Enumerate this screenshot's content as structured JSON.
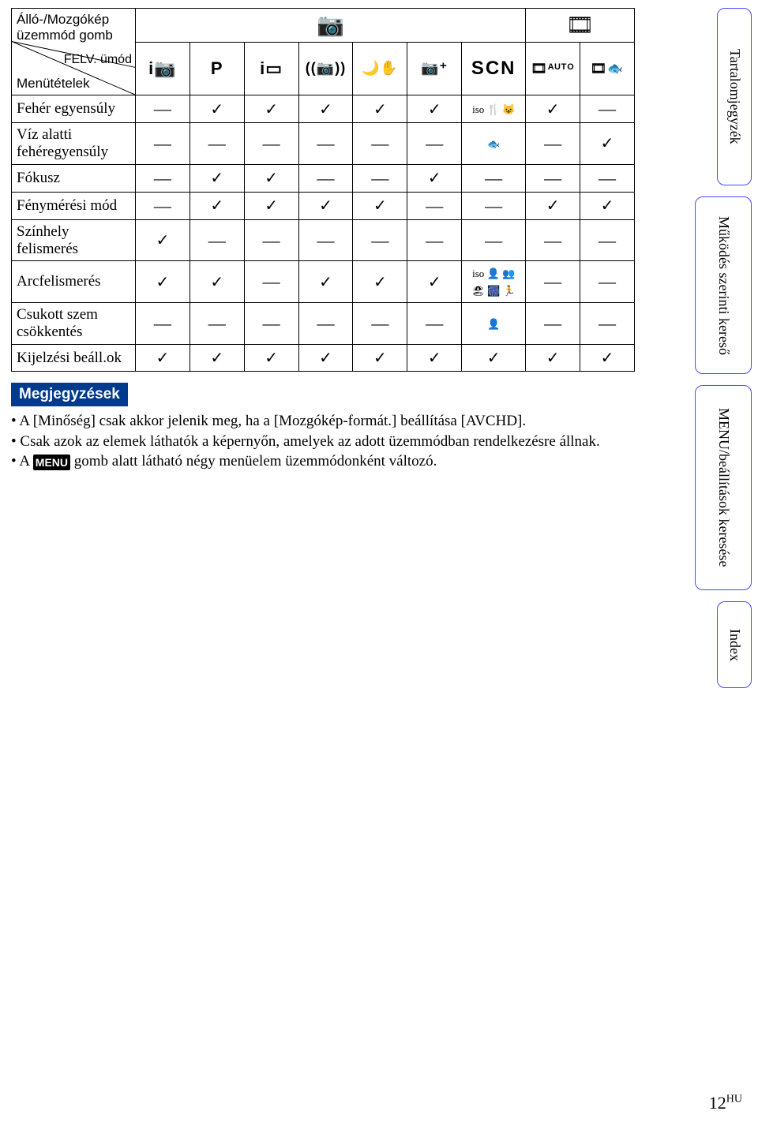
{
  "header": {
    "top_line1": "Álló-/Mozgókép",
    "top_line2": "üzemmód gomb",
    "mid": "FELV. ümód",
    "bottom": "Menütételek"
  },
  "col_headers_top": {
    "camera_icon": "📷",
    "film_icon": "🎞"
  },
  "col_headers_sub": {
    "c1": "i📷",
    "c2": "P",
    "c3": "i▭",
    "c4": "((📷))",
    "c5": "🌙✋",
    "c6": "📷⁺",
    "c7": "SCN",
    "c8": "🎞ᴬᵁᵀᴼ",
    "c9": "🎞🐟"
  },
  "rows": [
    {
      "label": "Fehér egyensúly",
      "cells": [
        "—",
        "✓",
        "✓",
        "✓",
        "✓",
        "✓",
        "iso 🍴 😺",
        "✓",
        "—"
      ]
    },
    {
      "label": "Víz alatti\nfehéregyensúly",
      "cells": [
        "—",
        "—",
        "—",
        "—",
        "—",
        "—",
        "🐟",
        "—",
        "✓"
      ]
    },
    {
      "label": "Fókusz",
      "cells": [
        "—",
        "✓",
        "✓",
        "—",
        "—",
        "✓",
        "—",
        "—",
        "—"
      ]
    },
    {
      "label": "Fénymérési mód",
      "cells": [
        "—",
        "✓",
        "✓",
        "✓",
        "✓",
        "—",
        "—",
        "✓",
        "✓"
      ]
    },
    {
      "label": "Színhely\nfelismerés",
      "cells": [
        "✓",
        "—",
        "—",
        "—",
        "—",
        "—",
        "—",
        "—",
        "—"
      ]
    },
    {
      "label": "Arcfelismerés",
      "cells": [
        "✓",
        "✓",
        "—",
        "✓",
        "✓",
        "✓",
        "iso 👤 👥\n🏖 🎆 🏃",
        "—",
        "—"
      ]
    },
    {
      "label": "Csukott szem\ncsökkentés",
      "cells": [
        "—",
        "—",
        "—",
        "—",
        "—",
        "—",
        "👤",
        "—",
        "—"
      ]
    },
    {
      "label": "Kijelzési beáll.ok",
      "cells": [
        "✓",
        "✓",
        "✓",
        "✓",
        "✓",
        "✓",
        "✓",
        "✓",
        "✓"
      ]
    }
  ],
  "notes": {
    "heading": "Megjegyzések",
    "items": [
      "A [Minőség] csak akkor jelenik meg, ha a [Mozgókép-formát.] beállítása [AVCHD].",
      "Csak azok az elemek láthatók a képernyőn, amelyek az adott üzemmódban rendelkezésre állnak.",
      "A MENU gomb alatt látható négy menüelem üzemmódonként változó."
    ],
    "menu_label": "MENU"
  },
  "tabs": {
    "t1": "Tartalomjegyzék",
    "t2": "Működés szerinti kereső",
    "t3": "MENU/beállítások keresése",
    "t4": "Index"
  },
  "page_number": "12",
  "page_suffix": "HU",
  "colors": {
    "tab_border": "#4a4aff",
    "notes_bg": "#003a8c"
  }
}
